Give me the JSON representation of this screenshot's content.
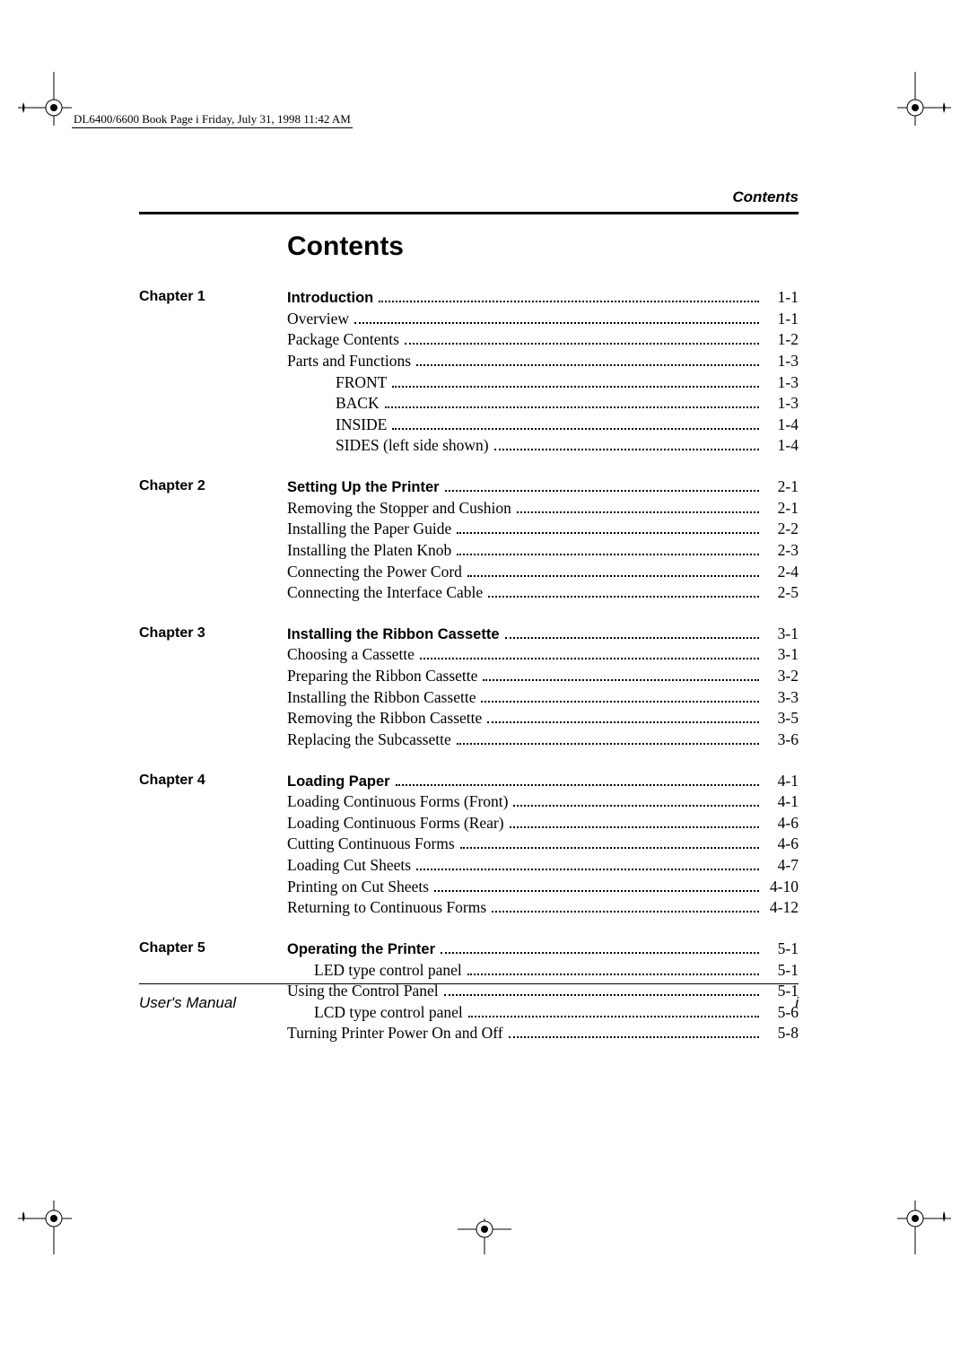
{
  "header_stamp": "DL6400/6600 Book  Page i  Friday, July 31, 1998  11:42 AM",
  "running_head": "Contents",
  "title": "Contents",
  "footer": {
    "left": "User's Manual",
    "right": "i"
  },
  "chapters": [
    {
      "label": "Chapter 1",
      "entries": [
        {
          "text": "Introduction",
          "page": "1-1",
          "lead": true,
          "indent": 0
        },
        {
          "text": "Overview",
          "page": "1-1",
          "indent": 0
        },
        {
          "text": "Package Contents",
          "page": "1-2",
          "indent": 0
        },
        {
          "text": "Parts and Functions",
          "page": "1-3",
          "indent": 0
        },
        {
          "text": "FRONT",
          "page": "1-3",
          "indent": 1
        },
        {
          "text": "BACK",
          "page": "1-3",
          "indent": 1
        },
        {
          "text": "INSIDE",
          "page": "1-4",
          "indent": 1
        },
        {
          "text": "SIDES (left side shown)",
          "page": "1-4",
          "indent": 1
        }
      ]
    },
    {
      "label": "Chapter 2",
      "entries": [
        {
          "text": "Setting Up the Printer",
          "page": "2-1",
          "lead": true,
          "indent": 0
        },
        {
          "text": "Removing the Stopper and Cushion",
          "page": "2-1",
          "indent": 0
        },
        {
          "text": "Installing the Paper Guide",
          "page": "2-2",
          "indent": 0
        },
        {
          "text": "Installing the Platen Knob",
          "page": "2-3",
          "indent": 0
        },
        {
          "text": "Connecting the Power Cord",
          "page": "2-4",
          "indent": 0
        },
        {
          "text": "Connecting the Interface Cable",
          "page": "2-5",
          "indent": 0
        }
      ]
    },
    {
      "label": "Chapter 3",
      "entries": [
        {
          "text": "Installing the Ribbon Cassette",
          "page": "3-1",
          "lead": true,
          "indent": 0
        },
        {
          "text": "Choosing a Cassette",
          "page": "3-1",
          "indent": 0
        },
        {
          "text": "Preparing the Ribbon Cassette",
          "page": "3-2",
          "indent": 0
        },
        {
          "text": "Installing the Ribbon Cassette",
          "page": "3-3",
          "indent": 0
        },
        {
          "text": "Removing the Ribbon Cassette",
          "page": "3-5",
          "indent": 0
        },
        {
          "text": "Replacing the Subcassette",
          "page": "3-6",
          "indent": 0
        }
      ]
    },
    {
      "label": "Chapter 4",
      "entries": [
        {
          "text": "Loading Paper",
          "page": "4-1",
          "lead": true,
          "indent": 0
        },
        {
          "text": "Loading Continuous Forms (Front)",
          "page": "4-1",
          "indent": 0
        },
        {
          "text": "Loading Continuous Forms (Rear)",
          "page": "4-6",
          "indent": 0
        },
        {
          "text": "Cutting Continuous Forms",
          "page": "4-6",
          "indent": 0
        },
        {
          "text": "Loading Cut Sheets",
          "page": "4-7",
          "indent": 0
        },
        {
          "text": "Printing on Cut Sheets",
          "page": "4-10",
          "indent": 0
        },
        {
          "text": "Returning to Continuous Forms",
          "page": "4-12",
          "indent": 0
        }
      ]
    },
    {
      "label": "Chapter 5",
      "entries": [
        {
          "text": "Operating the Printer",
          "page": "5-1",
          "lead": true,
          "indent": 0
        },
        {
          "text": "LED type control panel",
          "page": "5-1",
          "indent": 2
        },
        {
          "text": "Using the Control Panel",
          "page": "5-1",
          "indent": 0
        },
        {
          "text": "LCD type control panel",
          "page": "5-6",
          "indent": 2
        },
        {
          "text": "Turning Printer Power On and Off",
          "page": "5-8",
          "indent": 0
        }
      ]
    }
  ]
}
